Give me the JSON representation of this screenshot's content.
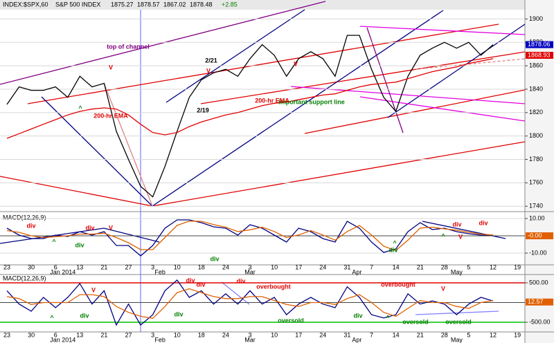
{
  "chart_data": [
    {
      "type": "line",
      "title": "INDEX:$SPX,60",
      "subtitle": "S&P 500 INDEX",
      "ohlc": [
        1875.27,
        1878.57,
        1867.02,
        1878.48
      ],
      "change": {
        "value": 2.85,
        "label": "+2.85"
      },
      "categories": [
        "23",
        null,
        "30",
        null,
        "6",
        null,
        "13",
        null,
        "21",
        null,
        "27",
        null,
        "3",
        null,
        "10",
        null,
        "18",
        null,
        "24",
        null,
        "3",
        null,
        "10",
        null,
        "17",
        null,
        "24",
        null,
        "31",
        null,
        "7",
        null,
        "14",
        null,
        "21",
        null,
        "28",
        null,
        "5",
        null,
        "12",
        null,
        "19"
      ],
      "months": [
        "Jan 2014",
        "Feb",
        "Mar",
        "Apr",
        "May"
      ],
      "series": [
        {
          "color": "#000000",
          "values": [
            1827,
            1842,
            1839,
            1839,
            1842,
            1833,
            1851,
            1842,
            1845,
            1804,
            1780,
            1757,
            1748,
            1774,
            1804,
            1833,
            1848,
            1854,
            1857,
            1851,
            1866,
            1878,
            1869,
            1851,
            1866,
            1872,
            1866,
            1851,
            1886,
            1886,
            1857,
            1833,
            1821,
            1851,
            1869,
            1875,
            1880,
            1875,
            1880,
            1869,
            1878,
            null,
            null
          ]
        },
        {
          "name": "200-hr EMA",
          "color": "#e00000",
          "values": [
            1798,
            1802,
            1806,
            1810,
            1814,
            1818,
            1821,
            1823,
            1824,
            1823,
            1818,
            1810,
            1803,
            1801,
            1803,
            1808,
            1812,
            1815,
            1818,
            1820,
            1823,
            1826,
            1828,
            1829,
            1831,
            1833,
            1835,
            1836,
            1839,
            1842,
            1844,
            1845,
            1846,
            1849,
            1852,
            1855,
            1857,
            1859,
            1862,
            1864,
            1866,
            null,
            null
          ]
        }
      ],
      "price_tags": [
        1878.06,
        1868.93
      ],
      "ylim": [
        1736,
        1915
      ],
      "yticks": [
        1740,
        1760,
        1780,
        1800,
        1820,
        1840,
        1860,
        1880,
        1900
      ],
      "annotations": [
        {
          "text": "top of channel",
          "color": "#800080"
        },
        {
          "text": "2/21",
          "color": "#000000"
        },
        {
          "text": "2/19",
          "color": "#000000"
        },
        {
          "text": "important support line",
          "color": "#008000"
        },
        {
          "text": "V",
          "color": "#e00000"
        },
        {
          "text": "V",
          "color": "#e00000"
        },
        {
          "text": "V",
          "color": "#e00000"
        },
        {
          "text": "^",
          "color": "#008000"
        }
      ]
    },
    {
      "type": "line",
      "title": "MACD(12,26,9)",
      "categories": [
        "23",
        null,
        "30",
        null,
        "6",
        null,
        "13",
        null,
        "21",
        null,
        "27",
        null,
        "3",
        null,
        "10",
        null,
        "18",
        null,
        "24",
        null,
        "3",
        null,
        "10",
        null,
        "17",
        null,
        "24",
        null,
        "31",
        null,
        "7",
        null,
        "14",
        null,
        "21",
        null,
        "28",
        null,
        "5",
        null,
        "12",
        null,
        "19"
      ],
      "months": [
        "Jan 2014",
        "Feb",
        "Mar",
        "Apr",
        "May"
      ],
      "series": [
        {
          "color": "#000080",
          "values": [
            4.4,
            0.4,
            -1.6,
            -1.6,
            0.4,
            -0.4,
            2.4,
            0.4,
            2.4,
            -5.6,
            -5.6,
            -11.6,
            -5.6,
            4.4,
            9.2,
            9.2,
            7.6,
            5.2,
            4.4,
            0.4,
            6.4,
            4.4,
            0.4,
            -3.6,
            4.4,
            2.4,
            -1.6,
            -3.6,
            8.4,
            4.4,
            -3.6,
            -9.6,
            -7.6,
            2.4,
            7.6,
            3.6,
            4.4,
            2.4,
            1.2,
            0.4,
            0.4,
            null,
            null
          ]
        },
        {
          "color": "#e06000",
          "values": [
            3,
            2,
            0,
            -1,
            -0.5,
            0,
            1,
            1,
            1.5,
            -1,
            -4,
            -8,
            -8,
            -1,
            6,
            8.5,
            8.4,
            6.5,
            5,
            2.5,
            3.5,
            5,
            2.5,
            -1,
            0.5,
            3,
            0.5,
            -2.5,
            2.5,
            6,
            0.5,
            -6,
            -8.5,
            -2.5,
            4.5,
            5,
            4,
            3.3,
            2,
            1,
            0.5,
            null,
            null
          ]
        }
      ],
      "value_tag": {
        "value": 0,
        "label": "-0.00"
      },
      "ylim": [
        -16,
        12.4
      ],
      "yticks": [
        {
          "value": 10,
          "label": "10.00"
        },
        {
          "value": -10,
          "label": "-10.00"
        }
      ],
      "annotations": [
        {
          "text": "div",
          "color": "#e00000"
        },
        {
          "text": "div",
          "color": "#e00000"
        },
        {
          "text": "V",
          "color": "#e00000"
        },
        {
          "text": "^",
          "color": "#008000"
        },
        {
          "text": "div",
          "color": "#008000"
        },
        {
          "text": "div",
          "color": "#008000"
        },
        {
          "text": "^",
          "color": "#008000"
        },
        {
          "text": "div",
          "color": "#008000"
        },
        {
          "text": "div",
          "color": "#e00000"
        },
        {
          "text": "div",
          "color": "#e00000"
        },
        {
          "text": "V",
          "color": "#e00000"
        },
        {
          "text": "^",
          "color": "#008000"
        }
      ]
    },
    {
      "type": "line",
      "title": "MACD(12,26,9)",
      "categories": [
        "23",
        null,
        "30",
        null,
        "6",
        null,
        "13",
        null,
        "21",
        null,
        "27",
        null,
        "3",
        null,
        "10",
        null,
        "18",
        null,
        "24",
        null,
        "3",
        null,
        "10",
        null,
        "17",
        null,
        "24",
        null,
        "31",
        null,
        "7",
        null,
        "14",
        null,
        "21",
        null,
        "28",
        null,
        "5",
        null,
        "12",
        null,
        "19"
      ],
      "months": [
        "Jan 2014",
        "Feb",
        "Mar",
        "Apr",
        "May"
      ],
      "series": [
        {
          "color": "#000080",
          "values": [
            300,
            -40,
            -220,
            130,
            -130,
            130,
            480,
            -40,
            300,
            -570,
            -40,
            -570,
            -310,
            300,
            570,
            130,
            300,
            -40,
            220,
            -40,
            300,
            -40,
            130,
            -310,
            -40,
            130,
            -40,
            -130,
            400,
            130,
            -310,
            -390,
            -310,
            220,
            -40,
            40,
            -40,
            -310,
            -40,
            130,
            40,
            null,
            null
          ]
        },
        {
          "color": "#e06000",
          "values": [
            150,
            100,
            -50,
            0,
            0,
            0,
            200,
            200,
            150,
            -100,
            -250,
            -350,
            -400,
            -100,
            250,
            350,
            250,
            150,
            100,
            100,
            150,
            150,
            50,
            -50,
            -100,
            0,
            0,
            -50,
            100,
            200,
            0,
            -250,
            -350,
            -150,
            50,
            0,
            0,
            -100,
            -150,
            0,
            50,
            null,
            null
          ]
        }
      ],
      "value_tag": 12.57,
      "ylim": [
        -711,
        657
      ],
      "yticks": [
        {
          "value": 500,
          "label": "500.00"
        },
        {
          "value": -500,
          "label": "-500.00"
        }
      ],
      "tick_colors": [
        "#e00000",
        "#00c000"
      ],
      "annotations": [
        {
          "text": "overbought",
          "color": "#e00000"
        },
        {
          "text": "overbought",
          "color": "#e00000"
        },
        {
          "text": "oversold",
          "color": "#008000"
        },
        {
          "text": "oversold",
          "color": "#008000"
        },
        {
          "text": "oversold",
          "color": "#008000"
        },
        {
          "text": "div",
          "color": "#e00000"
        },
        {
          "text": "div",
          "color": "#e00000"
        },
        {
          "text": "div",
          "color": "#e00000"
        },
        {
          "text": "div",
          "color": "#008000"
        },
        {
          "text": "div",
          "color": "#008000"
        },
        {
          "text": "div",
          "color": "#008000"
        },
        {
          "text": "V",
          "color": "#e00000"
        },
        {
          "text": "V",
          "color": "#e00000"
        },
        {
          "text": "^",
          "color": "#008000"
        },
        {
          "text": "^",
          "color": "#008000"
        }
      ]
    }
  ]
}
